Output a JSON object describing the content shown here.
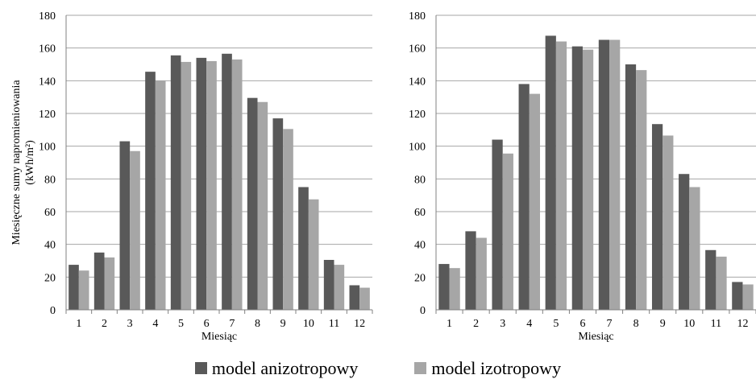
{
  "colors": {
    "anisotropic": "#595959",
    "isotropic": "#a6a6a6",
    "grid": "#a6a6a6",
    "axis": "#808080",
    "text": "#000000"
  },
  "legend": {
    "items": [
      {
        "label": "model anizotropowy",
        "color": "#595959"
      },
      {
        "label": "model izotropowy",
        "color": "#a6a6a6"
      }
    ],
    "placement": "bottom-center"
  },
  "chart_data": [
    {
      "type": "bar",
      "ylabel_line1": "Miesięczne sumy napromieniowania",
      "ylabel_line2": "(kWh/m²)",
      "xlabel": "Miesiąc",
      "categories": [
        "1",
        "2",
        "3",
        "4",
        "5",
        "6",
        "7",
        "8",
        "9",
        "10",
        "11",
        "12"
      ],
      "yticks": [
        "0",
        "20",
        "40",
        "60",
        "80",
        "100",
        "120",
        "140",
        "160",
        "180"
      ],
      "ylim": [
        0,
        180
      ],
      "grid": true,
      "series": [
        {
          "name": "model anizotropowy",
          "values": [
            27.5,
            35,
            103,
            145.5,
            155.5,
            154,
            156.5,
            129.5,
            117,
            75,
            30.5,
            15
          ]
        },
        {
          "name": "model izotropowy",
          "values": [
            24,
            32,
            97,
            140,
            151.5,
            152,
            153,
            127,
            110.5,
            67.5,
            27.5,
            13.5
          ]
        }
      ]
    },
    {
      "type": "bar",
      "xlabel": "Miesiąc",
      "categories": [
        "1",
        "2",
        "3",
        "4",
        "5",
        "6",
        "7",
        "8",
        "9",
        "10",
        "11",
        "12"
      ],
      "yticks": [
        "0",
        "20",
        "40",
        "60",
        "80",
        "100",
        "120",
        "140",
        "160",
        "180"
      ],
      "ylim": [
        0,
        180
      ],
      "grid": true,
      "series": [
        {
          "name": "model anizotropowy",
          "values": [
            28,
            48,
            104,
            138,
            167.5,
            161,
            165,
            150,
            113.5,
            83,
            36.5,
            17
          ]
        },
        {
          "name": "model izotropowy",
          "values": [
            25.5,
            44,
            95.5,
            132,
            164,
            159,
            165,
            146.5,
            106.5,
            75,
            32.5,
            15.5
          ]
        }
      ]
    }
  ]
}
